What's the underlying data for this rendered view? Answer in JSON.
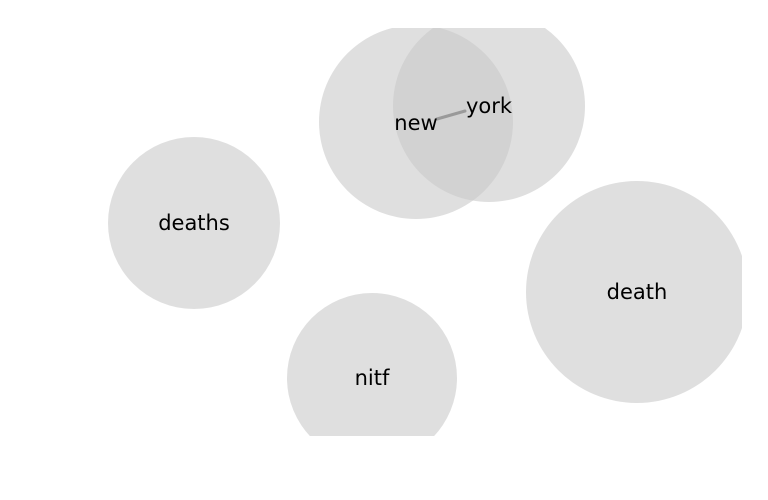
{
  "nodes": [
    {
      "id": "deaths",
      "label": "deaths"
    },
    {
      "id": "new",
      "label": "new"
    },
    {
      "id": "york",
      "label": "york"
    },
    {
      "id": "death",
      "label": "death"
    },
    {
      "id": "nitf",
      "label": "nitf"
    }
  ],
  "edges": [
    {
      "source": "new",
      "target": "york"
    }
  ],
  "colors": {
    "node_fill": "#c9c9c9",
    "edge": "#9a9a9a",
    "label": "#000000"
  }
}
